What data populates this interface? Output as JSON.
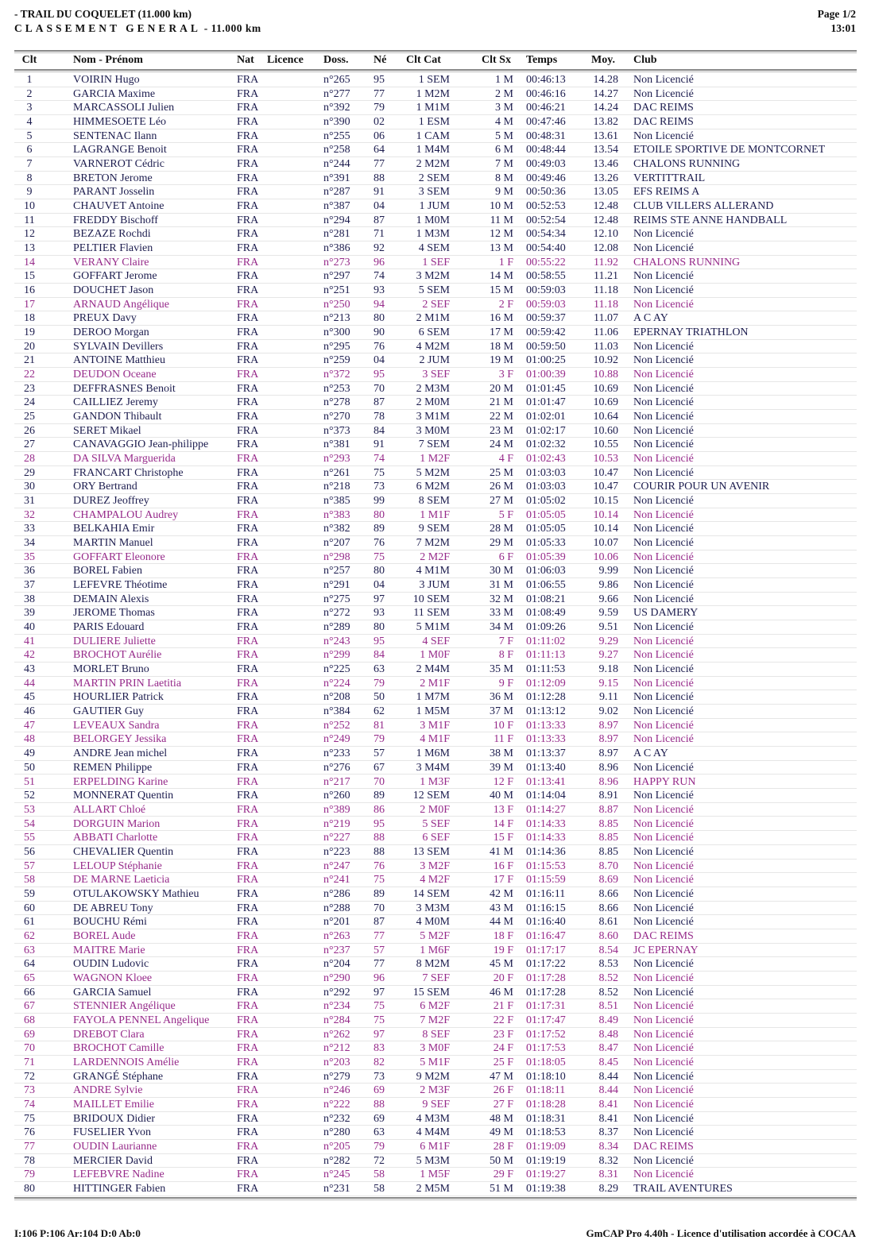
{
  "header": {
    "title": "- TRAIL DU COQUELET (11.000 km)",
    "subtitle_spaced": "CLASSEMENT GENERAL",
    "subtitle_rest": " - 11.000 km",
    "page": "Page 1/2",
    "time": "13:01"
  },
  "colors": {
    "male": "#1c1c4e",
    "female": "#962a8a"
  },
  "columns": [
    "Clt",
    "Nom - Prénom",
    "Nat",
    "Licence",
    "Doss.",
    "Né",
    "Clt Cat",
    "Clt Sx",
    "Temps",
    "Moy.",
    "Club"
  ],
  "rows": [
    [
      "1",
      "VOIRIN Hugo",
      "FRA",
      "",
      "n°265",
      "95",
      "1 SEM",
      "1 M",
      "00:46:13",
      "14.28",
      "Non Licencié"
    ],
    [
      "2",
      "GARCIA Maxime",
      "FRA",
      "",
      "n°277",
      "77",
      "1 M2M",
      "2 M",
      "00:46:16",
      "14.27",
      "Non Licencié"
    ],
    [
      "3",
      "MARCASSOLI Julien",
      "FRA",
      "",
      "n°392",
      "79",
      "1 M1M",
      "3 M",
      "00:46:21",
      "14.24",
      "DAC REIMS"
    ],
    [
      "4",
      "HIMMESOETE Léo",
      "FRA",
      "",
      "n°390",
      "02",
      "1 ESM",
      "4 M",
      "00:47:46",
      "13.82",
      "DAC REIMS"
    ],
    [
      "5",
      "SENTENAC Ilann",
      "FRA",
      "",
      "n°255",
      "06",
      "1 CAM",
      "5 M",
      "00:48:31",
      "13.61",
      "Non Licencié"
    ],
    [
      "6",
      "LAGRANGE Benoit",
      "FRA",
      "",
      "n°258",
      "64",
      "1 M4M",
      "6 M",
      "00:48:44",
      "13.54",
      "ETOILE SPORTIVE DE MONTCORNET"
    ],
    [
      "7",
      "VARNEROT Cédric",
      "FRA",
      "",
      "n°244",
      "77",
      "2 M2M",
      "7 M",
      "00:49:03",
      "13.46",
      "CHALONS RUNNING"
    ],
    [
      "8",
      "BRETON Jerome",
      "FRA",
      "",
      "n°391",
      "88",
      "2 SEM",
      "8 M",
      "00:49:46",
      "13.26",
      "VERTITTRAIL"
    ],
    [
      "9",
      "PARANT Josselin",
      "FRA",
      "",
      "n°287",
      "91",
      "3 SEM",
      "9 M",
      "00:50:36",
      "13.05",
      "EFS REIMS A"
    ],
    [
      "10",
      "CHAUVET Antoine",
      "FRA",
      "",
      "n°387",
      "04",
      "1 JUM",
      "10 M",
      "00:52:53",
      "12.48",
      "CLUB VILLERS ALLERAND"
    ],
    [
      "11",
      "FREDDY Bischoff",
      "FRA",
      "",
      "n°294",
      "87",
      "1 M0M",
      "11 M",
      "00:52:54",
      "12.48",
      "REIMS STE ANNE HANDBALL"
    ],
    [
      "12",
      "BEZAZE Rochdi",
      "FRA",
      "",
      "n°281",
      "71",
      "1 M3M",
      "12 M",
      "00:54:34",
      "12.10",
      "Non Licencié"
    ],
    [
      "13",
      "PELTIER Flavien",
      "FRA",
      "",
      "n°386",
      "92",
      "4 SEM",
      "13 M",
      "00:54:40",
      "12.08",
      "Non Licencié"
    ],
    [
      "14",
      "VERANY Claire",
      "FRA",
      "",
      "n°273",
      "96",
      "1 SEF",
      "1 F",
      "00:55:22",
      "11.92",
      "CHALONS RUNNING"
    ],
    [
      "15",
      "GOFFART Jerome",
      "FRA",
      "",
      "n°297",
      "74",
      "3 M2M",
      "14 M",
      "00:58:55",
      "11.21",
      "Non Licencié"
    ],
    [
      "16",
      "DOUCHET Jason",
      "FRA",
      "",
      "n°251",
      "93",
      "5 SEM",
      "15 M",
      "00:59:03",
      "11.18",
      "Non Licencié"
    ],
    [
      "17",
      "ARNAUD Angélique",
      "FRA",
      "",
      "n°250",
      "94",
      "2 SEF",
      "2 F",
      "00:59:03",
      "11.18",
      "Non Licencié"
    ],
    [
      "18",
      "PREUX Davy",
      "FRA",
      "",
      "n°213",
      "80",
      "2 M1M",
      "16 M",
      "00:59:37",
      "11.07",
      "A C AY"
    ],
    [
      "19",
      "DEROO Morgan",
      "FRA",
      "",
      "n°300",
      "90",
      "6 SEM",
      "17 M",
      "00:59:42",
      "11.06",
      "EPERNAY TRIATHLON"
    ],
    [
      "20",
      "SYLVAIN Devillers",
      "FRA",
      "",
      "n°295",
      "76",
      "4 M2M",
      "18 M",
      "00:59:50",
      "11.03",
      "Non Licencié"
    ],
    [
      "21",
      "ANTOINE Matthieu",
      "FRA",
      "",
      "n°259",
      "04",
      "2 JUM",
      "19 M",
      "01:00:25",
      "10.92",
      "Non Licencié"
    ],
    [
      "22",
      "DEUDON Oceane",
      "FRA",
      "",
      "n°372",
      "95",
      "3 SEF",
      "3 F",
      "01:00:39",
      "10.88",
      "Non Licencié"
    ],
    [
      "23",
      "DEFFRASNES Benoit",
      "FRA",
      "",
      "n°253",
      "70",
      "2 M3M",
      "20 M",
      "01:01:45",
      "10.69",
      "Non Licencié"
    ],
    [
      "24",
      "CAILLIEZ Jeremy",
      "FRA",
      "",
      "n°278",
      "87",
      "2 M0M",
      "21 M",
      "01:01:47",
      "10.69",
      "Non Licencié"
    ],
    [
      "25",
      "GANDON Thibault",
      "FRA",
      "",
      "n°270",
      "78",
      "3 M1M",
      "22 M",
      "01:02:01",
      "10.64",
      "Non Licencié"
    ],
    [
      "26",
      "SERET Mikael",
      "FRA",
      "",
      "n°373",
      "84",
      "3 M0M",
      "23 M",
      "01:02:17",
      "10.60",
      "Non Licencié"
    ],
    [
      "27",
      "CANAVAGGIO Jean-philippe",
      "FRA",
      "",
      "n°381",
      "91",
      "7 SEM",
      "24 M",
      "01:02:32",
      "10.55",
      "Non Licencié"
    ],
    [
      "28",
      "DA SILVA Marguerida",
      "FRA",
      "",
      "n°293",
      "74",
      "1 M2F",
      "4 F",
      "01:02:43",
      "10.53",
      "Non Licencié"
    ],
    [
      "29",
      "FRANCART Christophe",
      "FRA",
      "",
      "n°261",
      "75",
      "5 M2M",
      "25 M",
      "01:03:03",
      "10.47",
      "Non Licencié"
    ],
    [
      "30",
      "ORY Bertrand",
      "FRA",
      "",
      "n°218",
      "73",
      "6 M2M",
      "26 M",
      "01:03:03",
      "10.47",
      "COURIR POUR UN AVENIR"
    ],
    [
      "31",
      "DUREZ Jeoffrey",
      "FRA",
      "",
      "n°385",
      "99",
      "8 SEM",
      "27 M",
      "01:05:02",
      "10.15",
      "Non Licencié"
    ],
    [
      "32",
      "CHAMPALOU Audrey",
      "FRA",
      "",
      "n°383",
      "80",
      "1 M1F",
      "5 F",
      "01:05:05",
      "10.14",
      "Non Licencié"
    ],
    [
      "33",
      "BELKAHIA Emir",
      "FRA",
      "",
      "n°382",
      "89",
      "9 SEM",
      "28 M",
      "01:05:05",
      "10.14",
      "Non Licencié"
    ],
    [
      "34",
      "MARTIN Manuel",
      "FRA",
      "",
      "n°207",
      "76",
      "7 M2M",
      "29 M",
      "01:05:33",
      "10.07",
      "Non Licencié"
    ],
    [
      "35",
      "GOFFART Eleonore",
      "FRA",
      "",
      "n°298",
      "75",
      "2 M2F",
      "6 F",
      "01:05:39",
      "10.06",
      "Non Licencié"
    ],
    [
      "36",
      "BOREL Fabien",
      "FRA",
      "",
      "n°257",
      "80",
      "4 M1M",
      "30 M",
      "01:06:03",
      "9.99",
      "Non Licencié"
    ],
    [
      "37",
      "LEFEVRE Théotime",
      "FRA",
      "",
      "n°291",
      "04",
      "3 JUM",
      "31 M",
      "01:06:55",
      "9.86",
      "Non Licencié"
    ],
    [
      "38",
      "DEMAIN Alexis",
      "FRA",
      "",
      "n°275",
      "97",
      "10 SEM",
      "32 M",
      "01:08:21",
      "9.66",
      "Non Licencié"
    ],
    [
      "39",
      "JEROME Thomas",
      "FRA",
      "",
      "n°272",
      "93",
      "11 SEM",
      "33 M",
      "01:08:49",
      "9.59",
      "US DAMERY"
    ],
    [
      "40",
      "PARIS Edouard",
      "FRA",
      "",
      "n°289",
      "80",
      "5 M1M",
      "34 M",
      "01:09:26",
      "9.51",
      "Non Licencié"
    ],
    [
      "41",
      "DULIERE Juliette",
      "FRA",
      "",
      "n°243",
      "95",
      "4 SEF",
      "7 F",
      "01:11:02",
      "9.29",
      "Non Licencié"
    ],
    [
      "42",
      "BROCHOT Aurélie",
      "FRA",
      "",
      "n°299",
      "84",
      "1 M0F",
      "8 F",
      "01:11:13",
      "9.27",
      "Non Licencié"
    ],
    [
      "43",
      "MORLET Bruno",
      "FRA",
      "",
      "n°225",
      "63",
      "2 M4M",
      "35 M",
      "01:11:53",
      "9.18",
      "Non Licencié"
    ],
    [
      "44",
      "MARTIN PRIN Laetitia",
      "FRA",
      "",
      "n°224",
      "79",
      "2 M1F",
      "9 F",
      "01:12:09",
      "9.15",
      "Non Licencié"
    ],
    [
      "45",
      "HOURLIER Patrick",
      "FRA",
      "",
      "n°208",
      "50",
      "1 M7M",
      "36 M",
      "01:12:28",
      "9.11",
      "Non Licencié"
    ],
    [
      "46",
      "GAUTIER Guy",
      "FRA",
      "",
      "n°384",
      "62",
      "1 M5M",
      "37 M",
      "01:13:12",
      "9.02",
      "Non Licencié"
    ],
    [
      "47",
      "LEVEAUX Sandra",
      "FRA",
      "",
      "n°252",
      "81",
      "3 M1F",
      "10 F",
      "01:13:33",
      "8.97",
      "Non Licencié"
    ],
    [
      "48",
      "BELORGEY Jessika",
      "FRA",
      "",
      "n°249",
      "79",
      "4 M1F",
      "11 F",
      "01:13:33",
      "8.97",
      "Non Licencié"
    ],
    [
      "49",
      "ANDRE Jean michel",
      "FRA",
      "",
      "n°233",
      "57",
      "1 M6M",
      "38 M",
      "01:13:37",
      "8.97",
      "A C AY"
    ],
    [
      "50",
      "REMEN Philippe",
      "FRA",
      "",
      "n°276",
      "67",
      "3 M4M",
      "39 M",
      "01:13:40",
      "8.96",
      "Non Licencié"
    ],
    [
      "51",
      "ERPELDING Karine",
      "FRA",
      "",
      "n°217",
      "70",
      "1 M3F",
      "12 F",
      "01:13:41",
      "8.96",
      "HAPPY RUN"
    ],
    [
      "52",
      "MONNERAT Quentin",
      "FRA",
      "",
      "n°260",
      "89",
      "12 SEM",
      "40 M",
      "01:14:04",
      "8.91",
      "Non Licencié"
    ],
    [
      "53",
      "ALLART Chloé",
      "FRA",
      "",
      "n°389",
      "86",
      "2 M0F",
      "13 F",
      "01:14:27",
      "8.87",
      "Non Licencié"
    ],
    [
      "54",
      "DORGUIN Marion",
      "FRA",
      "",
      "n°219",
      "95",
      "5 SEF",
      "14 F",
      "01:14:33",
      "8.85",
      "Non Licencié"
    ],
    [
      "55",
      "ABBATI Charlotte",
      "FRA",
      "",
      "n°227",
      "88",
      "6 SEF",
      "15 F",
      "01:14:33",
      "8.85",
      "Non Licencié"
    ],
    [
      "56",
      "CHEVALIER Quentin",
      "FRA",
      "",
      "n°223",
      "88",
      "13 SEM",
      "41 M",
      "01:14:36",
      "8.85",
      "Non Licencié"
    ],
    [
      "57",
      "LELOUP Stéphanie",
      "FRA",
      "",
      "n°247",
      "76",
      "3 M2F",
      "16 F",
      "01:15:53",
      "8.70",
      "Non Licencié"
    ],
    [
      "58",
      "DE MARNE Laeticia",
      "FRA",
      "",
      "n°241",
      "75",
      "4 M2F",
      "17 F",
      "01:15:59",
      "8.69",
      "Non Licencié"
    ],
    [
      "59",
      "OTULAKOWSKY Mathieu",
      "FRA",
      "",
      "n°286",
      "89",
      "14 SEM",
      "42 M",
      "01:16:11",
      "8.66",
      "Non Licencié"
    ],
    [
      "60",
      "DE ABREU Tony",
      "FRA",
      "",
      "n°288",
      "70",
      "3 M3M",
      "43 M",
      "01:16:15",
      "8.66",
      "Non Licencié"
    ],
    [
      "61",
      "BOUCHU Rémi",
      "FRA",
      "",
      "n°201",
      "87",
      "4 M0M",
      "44 M",
      "01:16:40",
      "8.61",
      "Non Licencié"
    ],
    [
      "62",
      "BOREL Aude",
      "FRA",
      "",
      "n°263",
      "77",
      "5 M2F",
      "18 F",
      "01:16:47",
      "8.60",
      "DAC REIMS"
    ],
    [
      "63",
      "MAITRE Marie",
      "FRA",
      "",
      "n°237",
      "57",
      "1 M6F",
      "19 F",
      "01:17:17",
      "8.54",
      "JC EPERNAY"
    ],
    [
      "64",
      "OUDIN Ludovic",
      "FRA",
      "",
      "n°204",
      "77",
      "8 M2M",
      "45 M",
      "01:17:22",
      "8.53",
      "Non Licencié"
    ],
    [
      "65",
      "WAGNON Kloee",
      "FRA",
      "",
      "n°290",
      "96",
      "7 SEF",
      "20 F",
      "01:17:28",
      "8.52",
      "Non Licencié"
    ],
    [
      "66",
      "GARCIA Samuel",
      "FRA",
      "",
      "n°292",
      "97",
      "15 SEM",
      "46 M",
      "01:17:28",
      "8.52",
      "Non Licencié"
    ],
    [
      "67",
      "STENNIER Angélique",
      "FRA",
      "",
      "n°234",
      "75",
      "6 M2F",
      "21 F",
      "01:17:31",
      "8.51",
      "Non Licencié"
    ],
    [
      "68",
      "FAYOLA PENNEL Angelique",
      "FRA",
      "",
      "n°284",
      "75",
      "7 M2F",
      "22 F",
      "01:17:47",
      "8.49",
      "Non Licencié"
    ],
    [
      "69",
      "DREBOT Clara",
      "FRA",
      "",
      "n°262",
      "97",
      "8 SEF",
      "23 F",
      "01:17:52",
      "8.48",
      "Non Licencié"
    ],
    [
      "70",
      "BROCHOT Camille",
      "FRA",
      "",
      "n°212",
      "83",
      "3 M0F",
      "24 F",
      "01:17:53",
      "8.47",
      "Non Licencié"
    ],
    [
      "71",
      "LARDENNOIS Amélie",
      "FRA",
      "",
      "n°203",
      "82",
      "5 M1F",
      "25 F",
      "01:18:05",
      "8.45",
      "Non Licencié"
    ],
    [
      "72",
      "GRANGÉ Stéphane",
      "FRA",
      "",
      "n°279",
      "73",
      "9 M2M",
      "47 M",
      "01:18:10",
      "8.44",
      "Non Licencié"
    ],
    [
      "73",
      "ANDRE Sylvie",
      "FRA",
      "",
      "n°246",
      "69",
      "2 M3F",
      "26 F",
      "01:18:11",
      "8.44",
      "Non Licencié"
    ],
    [
      "74",
      "MAILLET Emilie",
      "FRA",
      "",
      "n°222",
      "88",
      "9 SEF",
      "27 F",
      "01:18:28",
      "8.41",
      "Non Licencié"
    ],
    [
      "75",
      "BRIDOUX Didier",
      "FRA",
      "",
      "n°232",
      "69",
      "4 M3M",
      "48 M",
      "01:18:31",
      "8.41",
      "Non Licencié"
    ],
    [
      "76",
      "FUSELIER Yvon",
      "FRA",
      "",
      "n°280",
      "63",
      "4 M4M",
      "49 M",
      "01:18:53",
      "8.37",
      "Non Licencié"
    ],
    [
      "77",
      "OUDIN Laurianne",
      "FRA",
      "",
      "n°205",
      "79",
      "6 M1F",
      "28 F",
      "01:19:09",
      "8.34",
      "DAC REIMS"
    ],
    [
      "78",
      "MERCIER David",
      "FRA",
      "",
      "n°282",
      "72",
      "5 M3M",
      "50 M",
      "01:19:19",
      "8.32",
      "Non Licencié"
    ],
    [
      "79",
      "LEFEBVRE Nadine",
      "FRA",
      "",
      "n°245",
      "58",
      "1 M5F",
      "29 F",
      "01:19:27",
      "8.31",
      "Non Licencié"
    ],
    [
      "80",
      "HITTINGER Fabien",
      "FRA",
      "",
      "n°231",
      "58",
      "2 M5M",
      "51 M",
      "01:19:38",
      "8.29",
      "TRAIL AVENTURES"
    ]
  ],
  "footer": {
    "left": "I:106 P:106 Ar:104 D:0 Ab:0",
    "right": "GmCAP Pro 4.40h - Licence d'utilisation accordée à COCAA"
  }
}
